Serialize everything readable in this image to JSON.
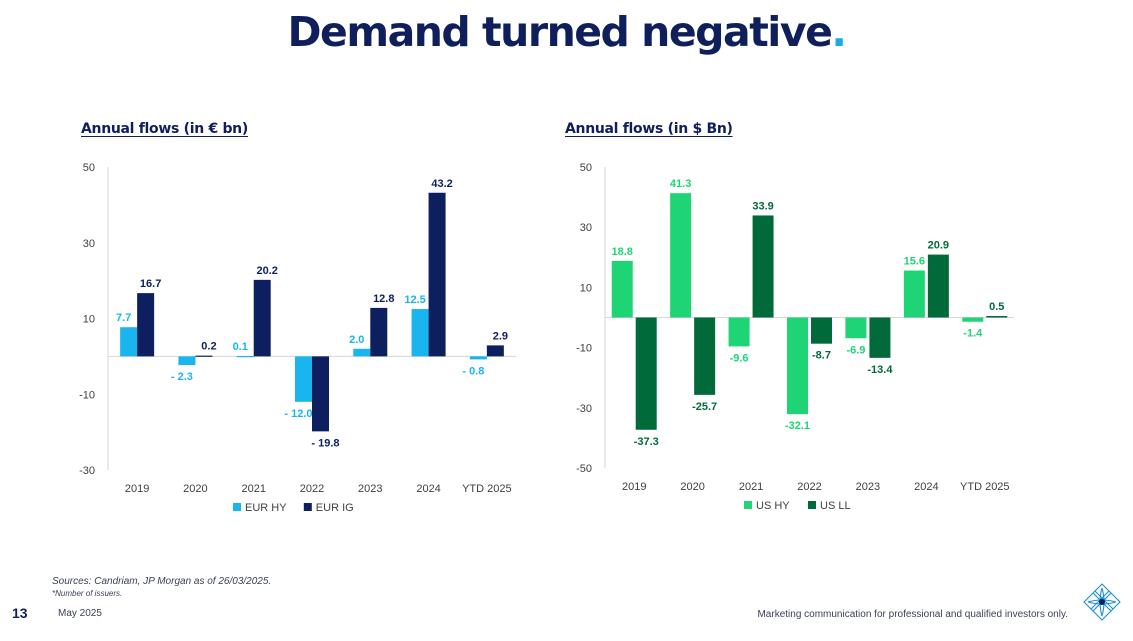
{
  "slide": {
    "title": "Demand turned negative",
    "title_dot": ".",
    "sources": "Sources: Candriam, JP Morgan as of 26/03/2025.",
    "note": "*Number of issuers.",
    "page_number": "13",
    "date": "May 2025",
    "disclaimer": "Marketing communication for professional and qualified investors only.",
    "logo_icon": "candriam-logo-icon"
  },
  "chart_data": [
    {
      "type": "bar",
      "title": "Annual flows (in € bn)",
      "categories": [
        "2019",
        "2020",
        "2021",
        "2022",
        "2023",
        "2024",
        "YTD 2025"
      ],
      "ylim": [
        -30,
        50
      ],
      "yticks": [
        50,
        30,
        10,
        -10,
        -30
      ],
      "grid": false,
      "legend_position": "bottom",
      "series": [
        {
          "name": "EUR HY",
          "color": "#19b5ee",
          "values": [
            7.7,
            -2.3,
            0.1,
            -12.0,
            2.0,
            12.5,
            -0.8
          ],
          "labels": [
            "7.7",
            "- 2.3",
            "0.1",
            "- 12.0",
            "2.0",
            "12.5",
            "- 0.8"
          ]
        },
        {
          "name": "EUR IG",
          "color": "#0d1f5f",
          "values": [
            16.7,
            0.2,
            20.2,
            -19.8,
            12.8,
            43.2,
            2.9
          ],
          "labels": [
            "16.7",
            "0.2",
            "20.2",
            "- 19.8",
            "12.8",
            "43.2",
            "2.9"
          ]
        }
      ]
    },
    {
      "type": "bar",
      "title": "Annual flows (in $ Bn)",
      "categories": [
        "2019",
        "2020",
        "2021",
        "2022",
        "2023",
        "2024",
        "YTD 2025"
      ],
      "ylim": [
        -50,
        50
      ],
      "yticks": [
        50,
        30,
        10,
        -10,
        -30,
        -50
      ],
      "grid": false,
      "legend_position": "bottom",
      "series": [
        {
          "name": "US HY",
          "color": "#1fd475",
          "values": [
            18.8,
            41.3,
            -9.6,
            -32.1,
            -6.9,
            15.6,
            -1.4
          ],
          "labels": [
            "18.8",
            "41.3",
            "-9.6",
            "-32.1",
            "-6.9",
            "15.6",
            "-1.4"
          ]
        },
        {
          "name": "US LL",
          "color": "#006a3a",
          "values": [
            -37.3,
            -25.7,
            33.9,
            -8.7,
            -13.4,
            20.9,
            0.5
          ],
          "labels": [
            "-37.3",
            "-25.7",
            "33.9",
            "-8.7",
            "-13.4",
            "20.9",
            "0.5"
          ]
        }
      ]
    }
  ]
}
